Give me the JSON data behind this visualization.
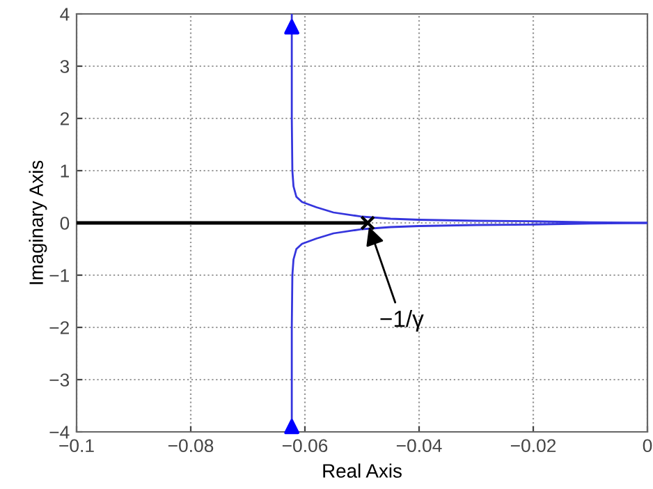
{
  "chart_data": {
    "type": "line",
    "xlabel": "Real Axis",
    "ylabel": "Imaginary Axis",
    "xlim": [
      -0.1,
      0
    ],
    "ylim": [
      -4,
      4
    ],
    "xticks": [
      {
        "value": -0.1,
        "label": "−0.1"
      },
      {
        "value": -0.08,
        "label": "−0.08"
      },
      {
        "value": -0.06,
        "label": "−0.06"
      },
      {
        "value": -0.04,
        "label": "−0.04"
      },
      {
        "value": -0.02,
        "label": "−0.02"
      },
      0
    ],
    "yticks": [
      {
        "value": -4,
        "label": "−4"
      },
      {
        "value": -3,
        "label": "−3"
      },
      {
        "value": -2,
        "label": "−2"
      },
      {
        "value": -1,
        "label": "−1"
      },
      0,
      1,
      2,
      3,
      4
    ],
    "grid": true,
    "line_style": "solid",
    "marker": "none",
    "series": [
      {
        "color": "#3535dd",
        "x": [
          -0.0623,
          -0.0623,
          -0.0622,
          -0.062,
          -0.0615,
          -0.0605,
          -0.058,
          -0.055,
          -0.05,
          -0.045,
          -0.04,
          -0.03,
          -0.02,
          -0.01,
          0
        ],
        "values": [
          4,
          2,
          1,
          0.7,
          0.5,
          0.4,
          0.3,
          0.2,
          0.12,
          0.08,
          0.06,
          0.04,
          0.03,
          0.01,
          0
        ]
      },
      {
        "color": "#3535dd",
        "x": [
          -0.0623,
          -0.0623,
          -0.0622,
          -0.062,
          -0.0615,
          -0.0605,
          -0.058,
          -0.055,
          -0.05,
          -0.045,
          -0.04,
          -0.03,
          -0.02,
          -0.01,
          0
        ],
        "values": [
          -4,
          -2,
          -1,
          -0.7,
          -0.5,
          -0.4,
          -0.3,
          -0.2,
          -0.12,
          -0.08,
          -0.06,
          -0.04,
          -0.03,
          -0.01,
          0
        ]
      },
      {
        "color": "#000000",
        "x": [
          -0.1,
          -0.049
        ],
        "values": [
          0,
          0
        ]
      },
      {
        "type": "scatter",
        "marker": "triangle",
        "color": "#0000ff",
        "x": [
          -0.0623,
          -0.0623
        ],
        "values": [
          3.75,
          -3.9
        ]
      },
      {
        "type": "scatter",
        "marker": "cross",
        "color": "#000000",
        "x": [
          -0.049
        ],
        "values": [
          0
        ]
      }
    ],
    "annotations": [
      {
        "text": "−1/γ",
        "x": -0.049,
        "y": 0
      }
    ]
  }
}
